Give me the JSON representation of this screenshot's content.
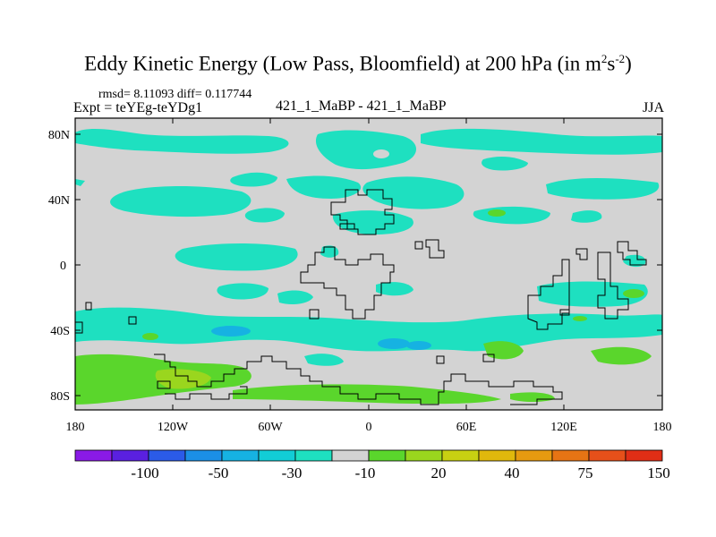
{
  "title": {
    "prefix": "Eddy Kinetic Energy (Low Pass, Bloomfield) at 200 hPa (in m",
    "sup1": "2",
    "mid": "s",
    "sup2": "-2",
    "suffix": ")"
  },
  "stats": "rmsd= 8.11093 diff= 0.117744",
  "expt": "Expt = teYEg-teYDg1",
  "center_label": "421_1_MaBP - 421_1_MaBP",
  "season": "JJA",
  "map": {
    "lat_ticks": [
      "80N",
      "40N",
      "0",
      "40S",
      "80S"
    ],
    "lon_ticks": [
      "180",
      "120W",
      "60W",
      "0",
      "60E",
      "120E",
      "180"
    ],
    "background_color": "#d3d3d3"
  },
  "colorbar": {
    "colors": [
      "#8a1ae6",
      "#5a20e0",
      "#2b5be8",
      "#1b8fe6",
      "#16b2e2",
      "#12cdd6",
      "#1ee0c0",
      "#d3d3d3",
      "#5ad62c",
      "#9ad61e",
      "#c8d012",
      "#e0b80c",
      "#e69a10",
      "#e67414",
      "#e6501a",
      "#e02e16"
    ],
    "labels": [
      "-100",
      "-50",
      "-30",
      "-10",
      "20",
      "40",
      "75",
      "150"
    ]
  }
}
